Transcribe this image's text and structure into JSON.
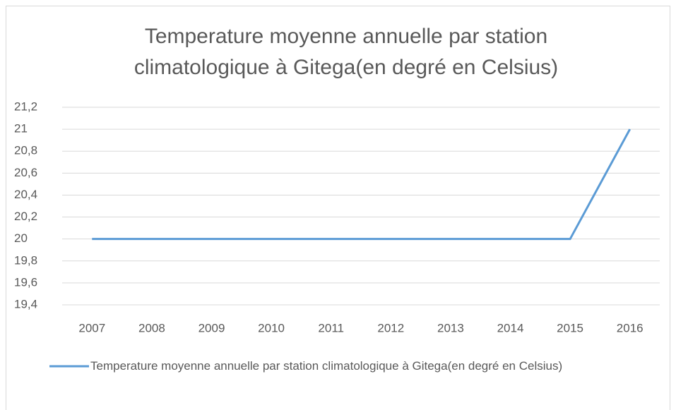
{
  "chart_data": {
    "type": "line",
    "title": "Temperature moyenne annuelle par station climatologique à Gitega(en degré en Celsius)",
    "categories": [
      "2007",
      "2008",
      "2009",
      "2010",
      "2011",
      "2012",
      "2013",
      "2014",
      "2015",
      "2016"
    ],
    "series": [
      {
        "name": "Temperature moyenne annuelle par station climatologique à Gitega(en degré en Celsius)",
        "color": "#5b9bd5",
        "values": [
          20,
          20,
          20,
          20,
          20,
          20,
          20,
          20,
          20,
          21
        ]
      }
    ],
    "ylim": [
      19.4,
      21.2
    ],
    "yticks": [
      {
        "value": 19.4,
        "label": "19,4"
      },
      {
        "value": 19.6,
        "label": "19,6"
      },
      {
        "value": 19.8,
        "label": "19,8"
      },
      20,
      {
        "value": 20.2,
        "label": "20,2"
      },
      {
        "value": 20.4,
        "label": "20,4"
      },
      {
        "value": 20.6,
        "label": "20,6"
      },
      {
        "value": 20.8,
        "label": "20,8"
      },
      21,
      {
        "value": 21.2,
        "label": "21,2"
      }
    ],
    "grid": true,
    "legend": "bottom"
  }
}
